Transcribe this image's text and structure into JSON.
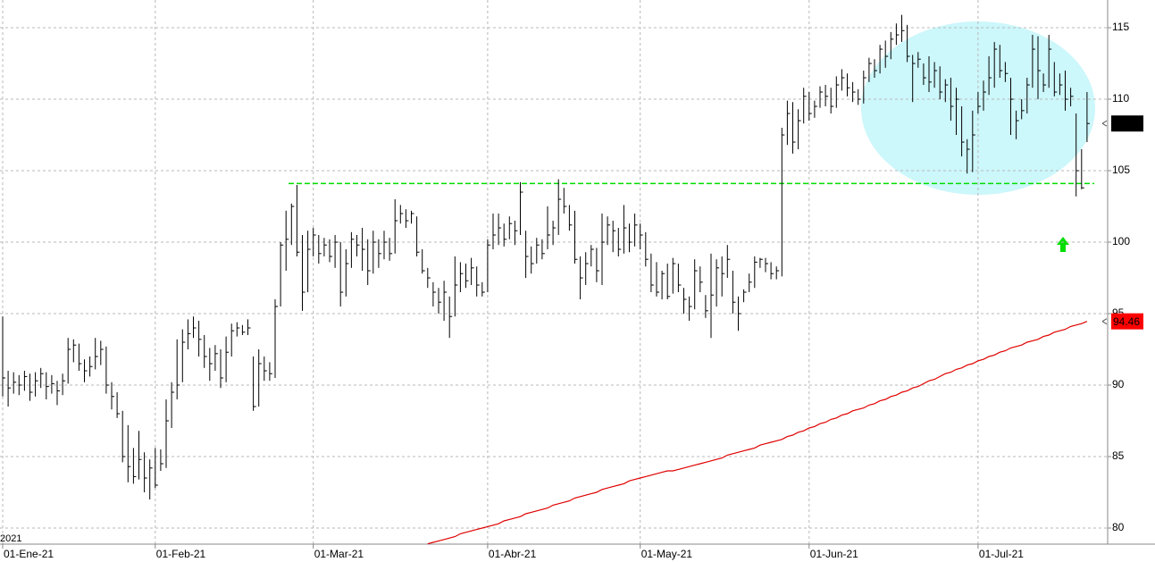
{
  "chart_data": {
    "type": "hlc",
    "year_label": "2021",
    "categories": [
      "01-Ene-21",
      null,
      null,
      null,
      null,
      null,
      null,
      null,
      null,
      null,
      null,
      null,
      null,
      null,
      null,
      null,
      null,
      null,
      null,
      null,
      null,
      null,
      null,
      null,
      null,
      null,
      null,
      null,
      "01-Feb-21",
      null,
      null,
      null,
      null,
      null,
      null,
      null,
      null,
      null,
      null,
      null,
      null,
      null,
      null,
      null,
      null,
      null,
      null,
      null,
      null,
      null,
      null,
      null,
      null,
      null,
      null,
      null,
      null,
      "01-Mar-21",
      null,
      null,
      null,
      null,
      null,
      null,
      null,
      null,
      null,
      null,
      null,
      null,
      null,
      null,
      null,
      null,
      null,
      null,
      null,
      null,
      null,
      null,
      null,
      null,
      null,
      null,
      null,
      null,
      null,
      null,
      null,
      "01-Abr-21",
      null,
      null,
      null,
      null,
      null,
      null,
      null,
      null,
      null,
      null,
      null,
      null,
      null,
      null,
      null,
      null,
      null,
      null,
      null,
      null,
      null,
      null,
      null,
      null,
      null,
      null,
      null,
      "01-May-21",
      null,
      null,
      null,
      null,
      null,
      null,
      null,
      null,
      null,
      null,
      null,
      null,
      null,
      null,
      null,
      null,
      null,
      null,
      null,
      null,
      null,
      null,
      null,
      null,
      null,
      null,
      null,
      null,
      null,
      null,
      "01-Jun-21",
      null,
      null,
      null,
      null,
      null,
      null,
      null,
      null,
      null,
      null,
      null,
      null,
      null,
      null,
      null,
      null,
      null,
      null,
      null,
      null,
      null,
      null,
      null,
      null,
      null,
      null,
      null,
      null,
      null,
      null,
      "01-Jul-21",
      null,
      null,
      null,
      null,
      null,
      null,
      null,
      null,
      null,
      null,
      null,
      null,
      null,
      null,
      null,
      null,
      null,
      null,
      null,
      null
    ],
    "series": [
      {
        "color": "#000000",
        "high": [
          94.8,
          91.0,
          90.9,
          90.7,
          91.0,
          90.8,
          90.9,
          91.2,
          90.9,
          90.7,
          90.3,
          90.8,
          93.3,
          93.2,
          92.9,
          91.8,
          92.0,
          93.3,
          93.1,
          92.7,
          90.2,
          89.5,
          88.2,
          87.2,
          85.6,
          86.8,
          85.3,
          84.8,
          85.6,
          85.5,
          89.0,
          90.2,
          93.2,
          93.9,
          94.6,
          94.8,
          94.5,
          93.5,
          92.6,
          92.8,
          92.5,
          93.4,
          94.3,
          94.4,
          94.2,
          94.6,
          92.0,
          92.5,
          92.0,
          91.6,
          96.0,
          100.0,
          102.2,
          102.7,
          104.0,
          100.5,
          100.8,
          101.0,
          100.5,
          100.3,
          100.2,
          100.5,
          100.0,
          99.5,
          100.7,
          100.5,
          101.0,
          100.2,
          100.8,
          100.2,
          100.8,
          100.3,
          103.0,
          102.6,
          102.3,
          102.2,
          101.8,
          99.5,
          98.2,
          97.2,
          96.8,
          97.3,
          96.2,
          99.0,
          98.6,
          98.5,
          98.9,
          98.3,
          97.2,
          100.2,
          102.0,
          102.0,
          101.3,
          101.8,
          101.5,
          104.2,
          100.8,
          99.7,
          100.3,
          100.2,
          102.5,
          101.5,
          104.4,
          103.8,
          102.6,
          102.2,
          99.0,
          99.3,
          99.8,
          99.6,
          102.0,
          101.8,
          101.5,
          101.0,
          102.6,
          101.3,
          102.0,
          101.3,
          100.7,
          99.2,
          98.6,
          98.0,
          98.5,
          98.9,
          98.5,
          96.8,
          96.2,
          98.8,
          98.3,
          96.3,
          99.2,
          98.8,
          99.0,
          99.8,
          98.0,
          96.2,
          96.7,
          97.8,
          99.0,
          98.9,
          98.9,
          98.6,
          98.3,
          108.0,
          109.9,
          109.8,
          109.3,
          110.8,
          110.5,
          109.9,
          110.9,
          111.0,
          110.8,
          111.6,
          112.1,
          111.8,
          111.2,
          110.7,
          112.0,
          112.9,
          112.8,
          113.8,
          114.1,
          114.7,
          115.3,
          115.9,
          115.2,
          113.1,
          113.3,
          112.5,
          113.0,
          112.6,
          112.3,
          111.4,
          111.5,
          110.8,
          109.5,
          107.2,
          109.2,
          110.5,
          111.3,
          113.0,
          114.0,
          113.8,
          112.6,
          111.5,
          109.2,
          110.0,
          111.5,
          114.5,
          114.4,
          111.8,
          114.5,
          112.6,
          111.8,
          112.0,
          110.8,
          109.0,
          106.5,
          110.5
        ],
        "low": [
          89.2,
          88.5,
          89.4,
          89.3,
          89.6,
          88.9,
          89.2,
          89.8,
          89.0,
          89.4,
          88.6,
          89.3,
          90.1,
          91.6,
          91.0,
          90.2,
          90.6,
          91.1,
          91.4,
          89.4,
          88.3,
          87.7,
          84.6,
          83.2,
          83.1,
          83.4,
          82.5,
          82.0,
          82.8,
          84.0,
          84.2,
          87.0,
          89.0,
          90.2,
          92.5,
          93.3,
          92.0,
          91.2,
          90.3,
          91.0,
          89.8,
          90.2,
          92.0,
          93.4,
          93.5,
          93.5,
          88.2,
          88.5,
          90.3,
          90.3,
          90.5,
          95.5,
          98.0,
          99.8,
          99.0,
          95.2,
          96.5,
          99.0,
          98.5,
          99.0,
          98.6,
          98.2,
          95.5,
          96.2,
          98.2,
          99.0,
          98.0,
          97.0,
          97.8,
          98.2,
          98.8,
          98.7,
          99.2,
          101.3,
          101.0,
          101.3,
          99.0,
          97.8,
          96.8,
          95.5,
          95.0,
          94.5,
          93.3,
          94.8,
          96.5,
          96.8,
          97.0,
          96.2,
          96.2,
          96.5,
          99.5,
          99.8,
          99.7,
          100.2,
          99.8,
          100.5,
          97.5,
          97.8,
          98.5,
          98.8,
          99.5,
          99.8,
          100.5,
          102.0,
          100.8,
          98.5,
          96.0,
          97.0,
          98.3,
          97.2,
          97.0,
          99.8,
          99.3,
          99.0,
          99.2,
          99.3,
          99.7,
          99.5,
          98.3,
          96.5,
          96.2,
          96.0,
          96.0,
          96.4,
          96.5,
          95.0,
          94.5,
          95.3,
          96.5,
          94.7,
          93.3,
          95.5,
          96.2,
          97.5,
          95.0,
          93.8,
          95.8,
          96.5,
          96.8,
          98.2,
          97.9,
          97.4,
          97.4,
          97.6,
          106.8,
          106.2,
          106.5,
          108.3,
          108.5,
          108.7,
          109.4,
          109.5,
          109.0,
          109.4,
          110.6,
          110.2,
          109.8,
          109.6,
          109.7,
          111.2,
          111.5,
          111.8,
          112.2,
          112.8,
          113.8,
          114.0,
          112.6,
          109.8,
          112.2,
          111.0,
          110.5,
          110.8,
          110.0,
          109.8,
          108.5,
          107.5,
          106.0,
          104.8,
          104.9,
          109.0,
          109.2,
          110.3,
          110.8,
          111.5,
          111.2,
          107.5,
          107.2,
          108.6,
          109.0,
          110.8,
          110.0,
          110.5,
          110.8,
          110.2,
          110.3,
          109.2,
          109.5,
          103.2,
          103.7,
          107.0
        ],
        "close": [
          90.5,
          89.8,
          90.2,
          90.0,
          90.6,
          89.5,
          90.3,
          90.8,
          89.9,
          90.1,
          89.6,
          90.3,
          92.5,
          92.8,
          91.5,
          91.0,
          91.3,
          92.0,
          92.5,
          90.0,
          89.2,
          88.0,
          85.0,
          84.3,
          83.6,
          84.8,
          83.5,
          84.2,
          83.0,
          84.5,
          87.5,
          89.5,
          90.0,
          93.0,
          93.6,
          94.0,
          93.2,
          92.0,
          91.5,
          92.2,
          90.5,
          92.3,
          93.8,
          94.0,
          93.7,
          94.0,
          88.5,
          91.5,
          91.0,
          90.8,
          95.5,
          99.8,
          100.2,
          102.5,
          99.3,
          96.5,
          99.5,
          100.5,
          99.2,
          99.8,
          99.0,
          100.0,
          96.5,
          98.5,
          100.2,
          99.8,
          99.5,
          98.0,
          100.0,
          99.2,
          100.0,
          99.2,
          101.5,
          102.0,
          101.5,
          102.0,
          99.3,
          98.0,
          97.5,
          96.5,
          95.8,
          96.5,
          94.8,
          97.0,
          97.8,
          97.3,
          98.2,
          97.0,
          96.5,
          99.8,
          100.5,
          101.0,
          100.2,
          101.3,
          100.8,
          103.5,
          99.0,
          98.5,
          99.8,
          99.2,
          100.5,
          101.0,
          103.0,
          102.5,
          101.2,
          98.8,
          97.5,
          98.5,
          99.5,
          98.0,
          100.0,
          101.2,
          100.8,
          99.5,
          101.0,
          100.0,
          101.2,
          100.5,
          98.8,
          97.0,
          96.5,
          97.8,
          96.2,
          98.5,
          97.0,
          96.0,
          95.5,
          98.0,
          97.2,
          95.2,
          96.3,
          98.2,
          97.8,
          98.8,
          95.8,
          95.0,
          96.5,
          97.2,
          98.6,
          98.8,
          98.5,
          97.8,
          98.0,
          107.5,
          109.0,
          107.0,
          108.5,
          110.2,
          109.0,
          109.5,
          110.5,
          110.2,
          109.5,
          111.0,
          111.5,
          110.8,
          110.5,
          110.0,
          111.5,
          112.5,
          112.0,
          113.5,
          113.0,
          114.2,
          114.5,
          114.8,
          113.0,
          112.5,
          112.8,
          111.5,
          111.2,
          112.0,
          110.5,
          111.0,
          109.5,
          110.0,
          107.0,
          106.5,
          107.5,
          109.5,
          110.5,
          111.5,
          113.5,
          112.0,
          111.8,
          110.0,
          108.5,
          109.2,
          111.0,
          113.5,
          112.0,
          111.0,
          113.5,
          110.5,
          111.0,
          110.0,
          110.2,
          105.0,
          103.8,
          108.3
        ]
      },
      {
        "color": "#e00000",
        "values": [
          null,
          null,
          null,
          null,
          null,
          null,
          null,
          null,
          null,
          null,
          null,
          null,
          null,
          null,
          null,
          null,
          null,
          null,
          null,
          null,
          null,
          null,
          null,
          null,
          null,
          null,
          null,
          null,
          null,
          null,
          null,
          null,
          null,
          null,
          null,
          null,
          null,
          null,
          null,
          null,
          null,
          null,
          null,
          null,
          null,
          null,
          null,
          null,
          null,
          null,
          null,
          null,
          null,
          null,
          null,
          null,
          null,
          null,
          null,
          null,
          null,
          null,
          null,
          null,
          null,
          null,
          null,
          null,
          null,
          null,
          null,
          null,
          null,
          null,
          null,
          null,
          null,
          null,
          78.9,
          79.0,
          79.1,
          79.2,
          79.3,
          79.4,
          79.6,
          79.7,
          79.8,
          79.9,
          80.0,
          80.1,
          80.2,
          80.3,
          80.5,
          80.6,
          80.7,
          80.8,
          81.0,
          81.1,
          81.2,
          81.3,
          81.4,
          81.6,
          81.7,
          81.8,
          81.9,
          82.1,
          82.2,
          82.3,
          82.4,
          82.5,
          82.7,
          82.8,
          82.9,
          83.0,
          83.1,
          83.3,
          83.4,
          83.5,
          83.6,
          83.7,
          83.8,
          83.9,
          84.0,
          84.0,
          84.1,
          84.2,
          84.3,
          84.4,
          84.5,
          84.6,
          84.7,
          84.8,
          84.9,
          85.1,
          85.2,
          85.3,
          85.4,
          85.5,
          85.6,
          85.8,
          85.9,
          86.0,
          86.1,
          86.2,
          86.4,
          86.5,
          86.7,
          86.8,
          87.0,
          87.1,
          87.3,
          87.4,
          87.6,
          87.7,
          87.9,
          88.0,
          88.2,
          88.3,
          88.4,
          88.6,
          88.7,
          88.9,
          89.0,
          89.2,
          89.3,
          89.5,
          89.6,
          89.8,
          89.9,
          90.1,
          90.3,
          90.4,
          90.6,
          90.8,
          90.9,
          91.1,
          91.2,
          91.4,
          91.5,
          91.7,
          91.8,
          92.0,
          92.1,
          92.3,
          92.4,
          92.6,
          92.7,
          92.8,
          93.0,
          93.1,
          93.2,
          93.4,
          93.5,
          93.7,
          93.8,
          93.9,
          94.1,
          94.2,
          94.3,
          94.46
        ]
      }
    ],
    "support_level": 104.1,
    "support_color": "#00dd00",
    "ylim": [
      78.875,
      116.94
    ],
    "yticks": [
      80,
      85,
      90,
      95,
      100,
      105,
      110,
      115
    ],
    "grid": true
  }
}
